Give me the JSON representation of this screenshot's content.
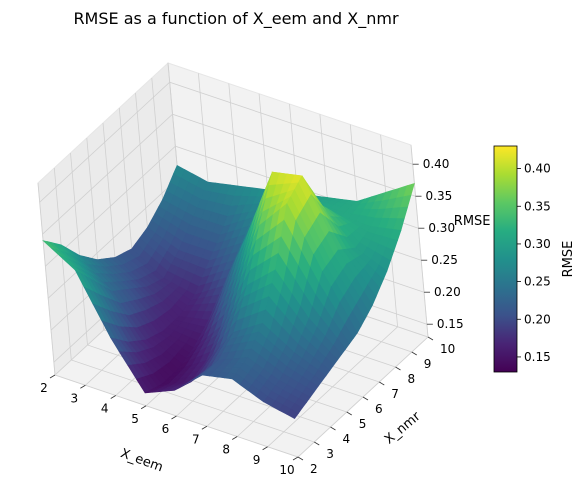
{
  "chart_data": {
    "type": "surface3d",
    "title": "RMSE as a function of X_eem and X_nmr",
    "xlabel": "X_eem",
    "ylabel": "X_nmr",
    "zlabel": "RMSE",
    "colorbar_label": "RMSE",
    "colormap": "viridis",
    "x": [
      2,
      3,
      4,
      5,
      6,
      7,
      8,
      9,
      10
    ],
    "y": [
      2,
      3,
      4,
      5,
      6,
      7,
      8,
      9,
      10
    ],
    "xlim": [
      2,
      10
    ],
    "ylim": [
      2,
      10
    ],
    "zlim": [
      0.13,
      0.43
    ],
    "x_ticks": [
      "2",
      "3",
      "4",
      "5",
      "6",
      "7",
      "8",
      "9",
      "10"
    ],
    "y_ticks": [
      "2",
      "3",
      "4",
      "5",
      "6",
      "7",
      "8",
      "9",
      "10"
    ],
    "z_ticks": [
      "0.15",
      "0.20",
      "0.25",
      "0.30",
      "0.35",
      "0.40"
    ],
    "colorbar_ticks": [
      "0.15",
      "0.20",
      "0.25",
      "0.30",
      "0.35",
      "0.40"
    ],
    "colorbar_range": [
      0.13,
      0.43
    ],
    "z_rows_note": "rows indexed by X_nmr (y), columns by X_eem (x)",
    "z": [
      [
        0.34,
        0.31,
        0.22,
        0.15,
        0.17,
        0.21,
        0.22,
        0.2,
        0.19
      ],
      [
        0.31,
        0.27,
        0.19,
        0.14,
        0.16,
        0.21,
        0.23,
        0.21,
        0.2
      ],
      [
        0.27,
        0.23,
        0.17,
        0.14,
        0.17,
        0.23,
        0.26,
        0.23,
        0.21
      ],
      [
        0.24,
        0.21,
        0.16,
        0.15,
        0.2,
        0.28,
        0.32,
        0.26,
        0.22
      ],
      [
        0.22,
        0.19,
        0.16,
        0.17,
        0.25,
        0.35,
        0.4,
        0.31,
        0.23
      ],
      [
        0.21,
        0.18,
        0.17,
        0.2,
        0.3,
        0.41,
        0.42,
        0.32,
        0.25
      ],
      [
        0.22,
        0.2,
        0.2,
        0.23,
        0.3,
        0.36,
        0.35,
        0.3,
        0.28
      ],
      [
        0.24,
        0.23,
        0.23,
        0.26,
        0.29,
        0.31,
        0.31,
        0.31,
        0.32
      ],
      [
        0.27,
        0.26,
        0.27,
        0.28,
        0.29,
        0.3,
        0.31,
        0.34,
        0.37
      ]
    ]
  }
}
